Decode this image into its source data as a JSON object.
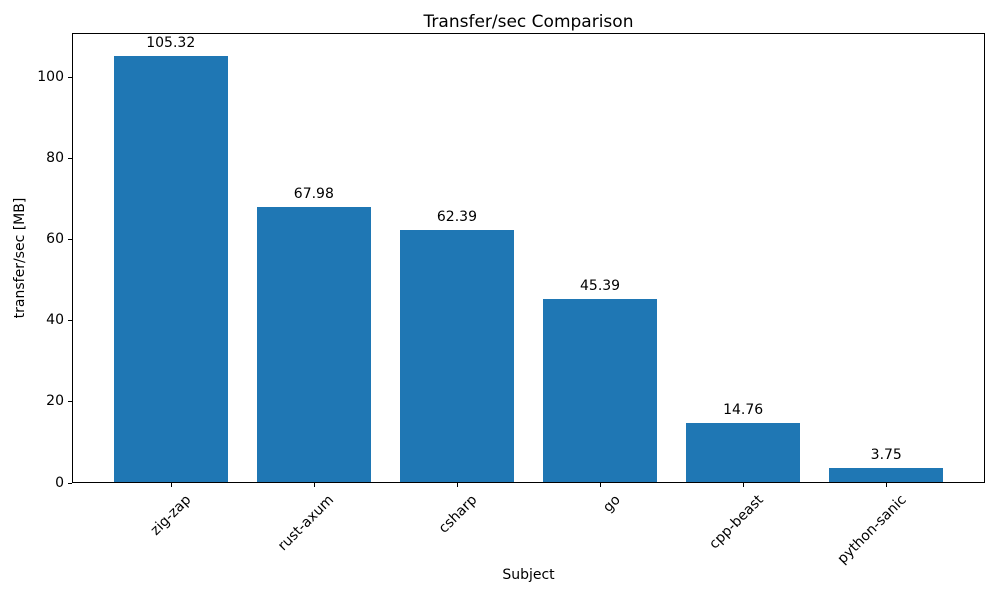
{
  "chart_data": {
    "type": "bar",
    "title": "Transfer/sec Comparison",
    "xlabel": "Subject",
    "ylabel": "transfer/sec [MB]",
    "categories": [
      "zig-zap",
      "rust-axum",
      "csharp",
      "go",
      "cpp-beast",
      "python-sanic"
    ],
    "values": [
      105.32,
      67.98,
      62.39,
      45.39,
      14.76,
      3.75
    ],
    "bar_labels": [
      "105.32",
      "67.98",
      "62.39",
      "45.39",
      "14.76",
      "3.75"
    ],
    "yticks": [
      0,
      20,
      40,
      60,
      80,
      100
    ],
    "ylim": [
      0,
      111
    ],
    "bar_color": "#1f77b4",
    "text_color": "#000000",
    "grid": false,
    "legend": null,
    "x_tick_rotation_deg": 45
  }
}
